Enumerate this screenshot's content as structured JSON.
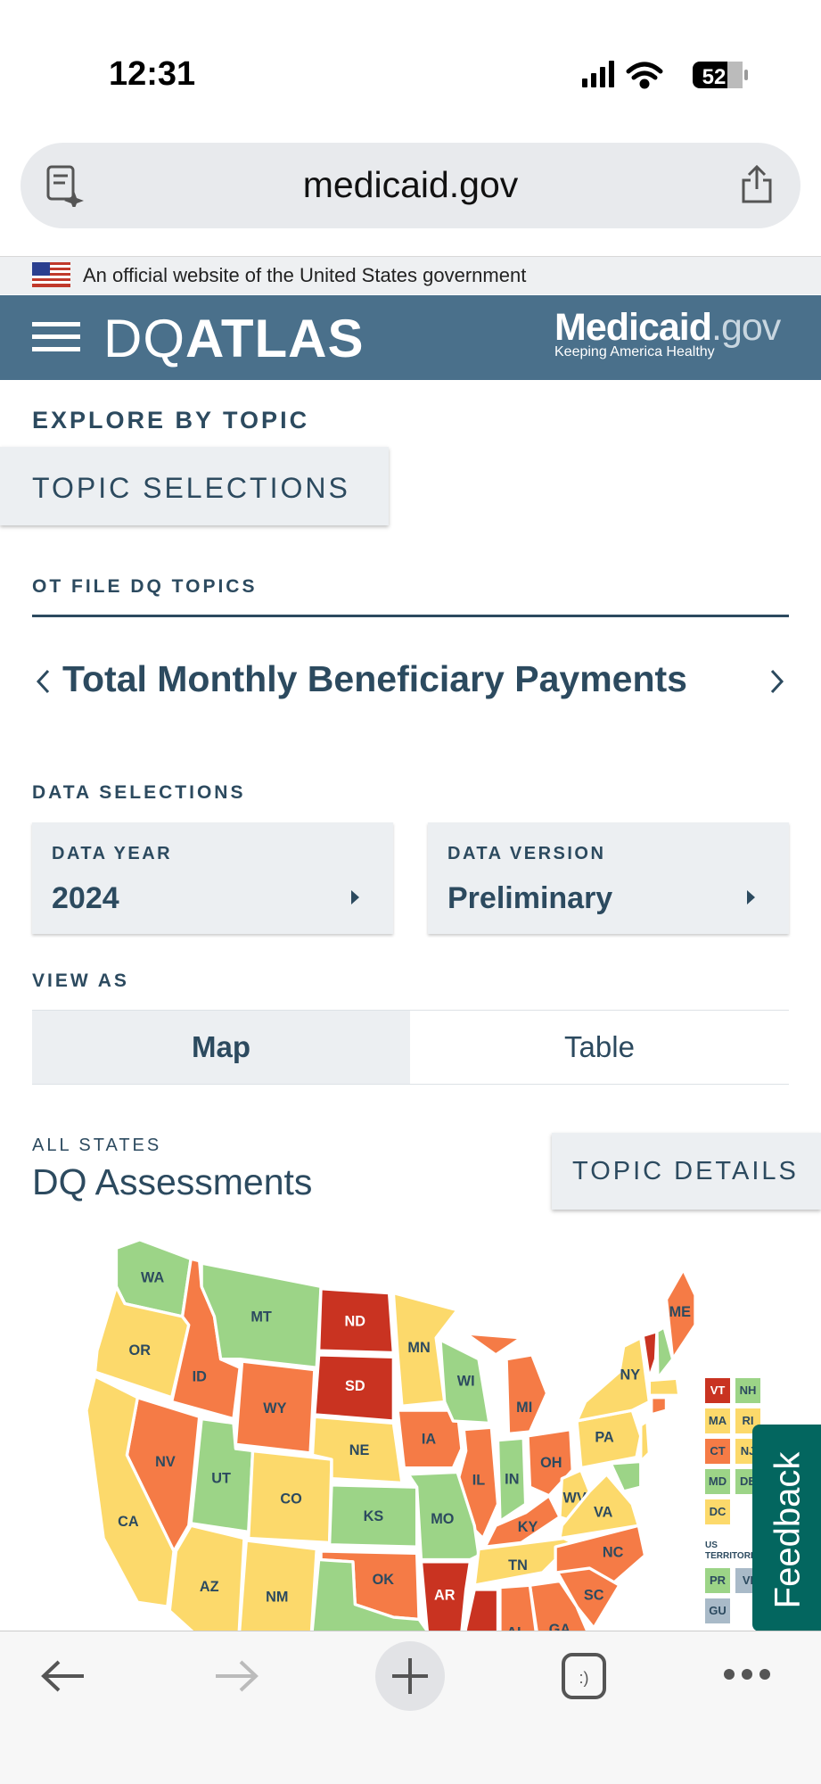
{
  "status_bar": {
    "time": "12:31",
    "battery": "52"
  },
  "browser": {
    "url": "medicaid.gov"
  },
  "gov_banner": {
    "text": "An official website of the United States government"
  },
  "header": {
    "logo_light": "DQ",
    "logo_bold": "ATLAS",
    "brand_main": "Medicaid",
    "brand_suffix": ".gov",
    "brand_tagline": "Keeping America Healthy"
  },
  "explore": {
    "heading": "EXPLORE BY TOPIC",
    "button": "TOPIC SELECTIONS"
  },
  "topics": {
    "section": "OT FILE DQ TOPICS",
    "title": "Total Monthly Beneficiary Payments"
  },
  "data_selections": {
    "heading": "DATA SELECTIONS",
    "year": {
      "label": "DATA YEAR",
      "value": "2024"
    },
    "version": {
      "label": "DATA VERSION",
      "value": "Preliminary"
    }
  },
  "view_as": {
    "heading": "VIEW AS",
    "options": [
      "Map",
      "Table"
    ],
    "selected": "Map"
  },
  "assessments": {
    "eyebrow": "ALL STATES",
    "title": "DQ Assessments",
    "details_button": "TOPIC DETAILS"
  },
  "colors": {
    "red": "#c93321",
    "orange": "#f57b46",
    "yellow": "#fcd96b",
    "green": "#9cd487",
    "gray": "#a9bac8"
  },
  "states": {
    "WA": "green",
    "OR": "yellow",
    "ID": "orange",
    "MT": "green",
    "ND": "red",
    "SD": "red",
    "WY": "orange",
    "NV": "orange",
    "CA": "yellow",
    "UT": "green",
    "CO": "yellow",
    "NE": "yellow",
    "KS": "green",
    "MN": "yellow",
    "IA": "orange",
    "WI": "green",
    "MI": "orange",
    "IL": "orange",
    "IN": "green",
    "OH": "orange",
    "MO": "green",
    "KY": "orange",
    "WV": "yellow",
    "VA": "yellow",
    "TN": "yellow",
    "NC": "orange",
    "SC": "orange",
    "GA": "orange",
    "AL": "orange",
    "MS": "red",
    "LA": "orange",
    "AR": "red",
    "OK": "orange",
    "TX": "green",
    "NM": "yellow",
    "AZ": "yellow",
    "FL": "yellow",
    "PA": "yellow",
    "NY": "yellow",
    "ME": "orange",
    "AK": "red",
    "HI": "yellow"
  },
  "small_states": [
    {
      "code": "VT",
      "level": "red"
    },
    {
      "code": "NH",
      "level": "green"
    },
    {
      "code": "MA",
      "level": "yellow"
    },
    {
      "code": "RI",
      "level": "yellow"
    },
    {
      "code": "CT",
      "level": "orange"
    },
    {
      "code": "NJ",
      "level": "yellow"
    },
    {
      "code": "MD",
      "level": "green"
    },
    {
      "code": "DE",
      "level": "green"
    },
    {
      "code": "DC",
      "level": "yellow"
    }
  ],
  "territories": {
    "heading": "US TERRITORIES",
    "items": [
      {
        "code": "PR",
        "level": "green"
      },
      {
        "code": "VI",
        "level": "gray"
      },
      {
        "code": "GU",
        "level": "gray"
      }
    ]
  },
  "feedback": {
    "label": "Feedback"
  }
}
